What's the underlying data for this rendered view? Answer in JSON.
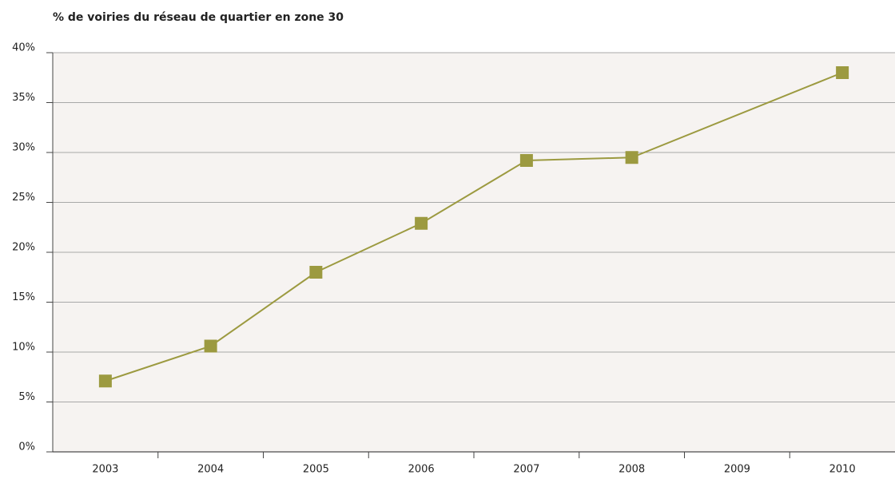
{
  "chart_data": {
    "type": "line",
    "title": "% de voiries du réseau de quartier en zone 30",
    "x": [
      2003,
      2004,
      2005,
      2006,
      2007,
      2008,
      2010
    ],
    "series": [
      {
        "color": "#9c9a40",
        "values": [
          7.1,
          10.6,
          18.0,
          22.9,
          29.2,
          29.5,
          38.0
        ]
      }
    ],
    "xlim": [
      2002.5,
      2010.5
    ],
    "xticks": [
      2003,
      2004,
      2005,
      2006,
      2007,
      2008,
      2009,
      2010
    ],
    "ylim": [
      0,
      40
    ],
    "yticks": [
      {
        "value": 0,
        "label": "0%"
      },
      {
        "value": 5,
        "label": "5%"
      },
      {
        "value": 10,
        "label": "10%"
      },
      {
        "value": 15,
        "label": "15%"
      },
      {
        "value": 20,
        "label": "20%"
      },
      {
        "value": 25,
        "label": "25%"
      },
      {
        "value": 30,
        "label": "30%"
      },
      {
        "value": 35,
        "label": "35%"
      },
      {
        "value": 40,
        "label": "40%"
      }
    ],
    "grid": true
  }
}
